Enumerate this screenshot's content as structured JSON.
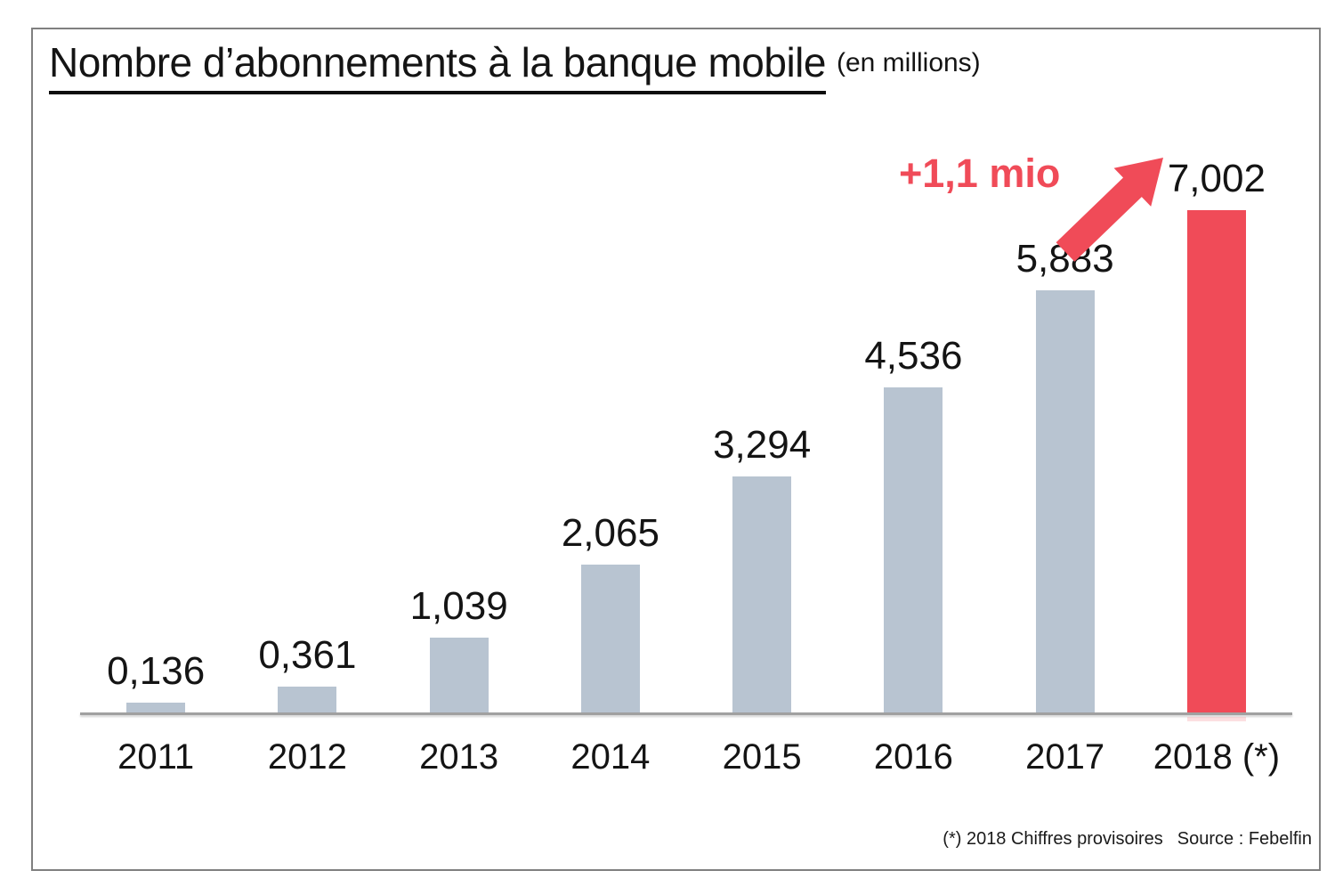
{
  "title": {
    "main": "Nombre d’abonnements à la banque mobile",
    "unit": "(en millions)"
  },
  "annotation": {
    "text": "+1,1 mio",
    "icon": "up-right-arrow"
  },
  "footer": {
    "footnote": "(*) 2018 Chiffres provisoires",
    "source": "Source : Febelfin"
  },
  "colors": {
    "bar": "#b8c4d1",
    "highlight": "#f04b58",
    "axis": "#a0a0a0",
    "border": "#808080",
    "ink": "#141414"
  },
  "chart_data": {
    "type": "bar",
    "title": "Nombre d’abonnements à la banque mobile (en millions)",
    "categories": [
      "2011",
      "2012",
      "2013",
      "2014",
      "2015",
      "2016",
      "2017",
      "2018 (*)"
    ],
    "values": [
      0.136,
      0.361,
      1.039,
      2.065,
      3.294,
      4.536,
      5.883,
      7.002
    ],
    "labels": [
      "0,136",
      "0,361",
      "1,039",
      "2,065",
      "3,294",
      "4,536",
      "5,883",
      "7,002"
    ],
    "highlight_index": 7,
    "highlight_color": "#f04b58",
    "bar_color": "#b8c4d1",
    "annotation": "+1,1 mio",
    "xlabel": "",
    "ylabel": "",
    "ylim": [
      0,
      7.3
    ],
    "grid": false,
    "legend": false
  }
}
